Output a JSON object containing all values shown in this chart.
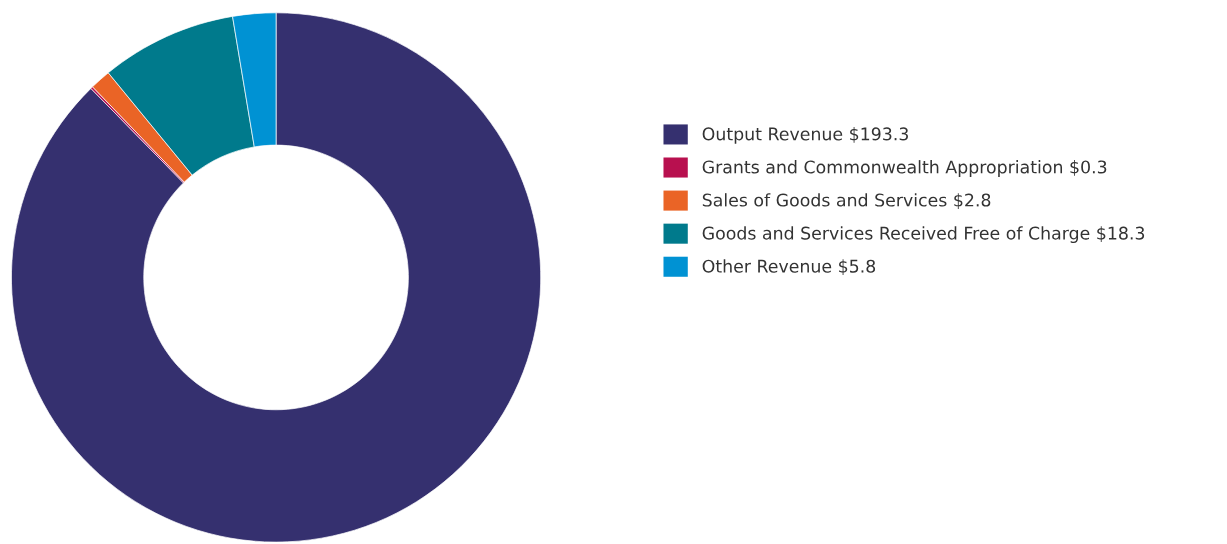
{
  "chart_data": {
    "type": "donut",
    "categories": [
      "Output Revenue $193.3",
      "Grants and Commonwealth Appropriation $0.3",
      "Sales of Goods and Services $2.8",
      "Goods and Services Received Free of Charge $18.3",
      "Other Revenue $5.8"
    ],
    "values": [
      193.3,
      0.3,
      2.8,
      18.3,
      5.8
    ],
    "colors": [
      "#35306f",
      "#b8104f",
      "#ea6426",
      "#007a8c",
      "#0092d3"
    ],
    "legend": "right"
  }
}
